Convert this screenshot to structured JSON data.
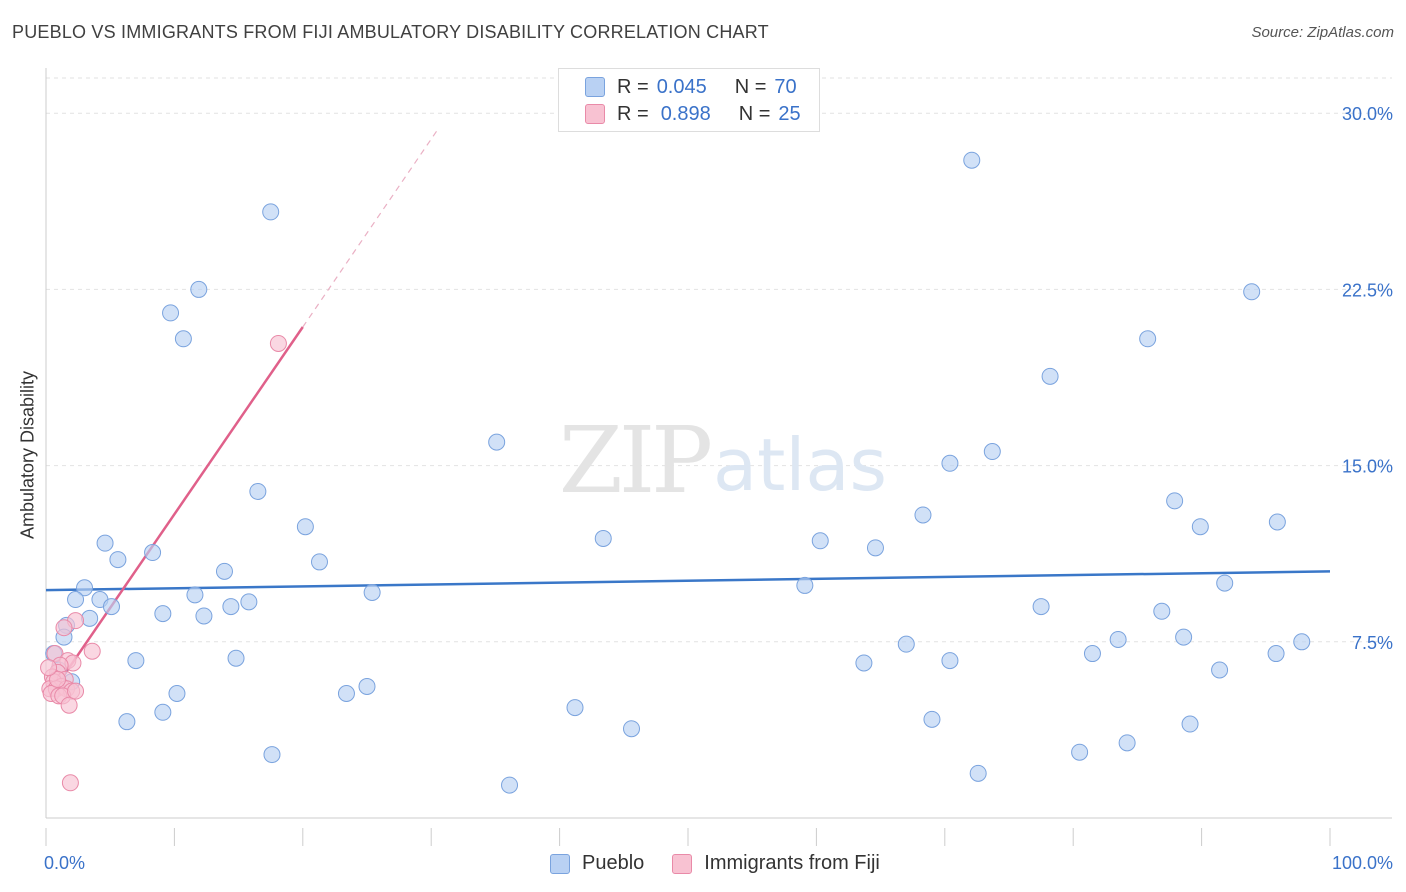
{
  "title": "PUEBLO VS IMMIGRANTS FROM FIJI AMBULATORY DISABILITY CORRELATION CHART",
  "source": "Source: ZipAtlas.com",
  "watermark": {
    "zip": "ZIP",
    "atlas": "atlas"
  },
  "legend": {
    "r_label": "R =",
    "n_label": "N =",
    "series": [
      {
        "r": "0.045",
        "n": "70"
      },
      {
        "r": "0.898",
        "n": "25"
      }
    ]
  },
  "bottom_legend": [
    "Pueblo",
    "Immigrants from Fiji"
  ],
  "colors": {
    "pueblo_fill": "#b9d1f3",
    "pueblo_stroke": "#7aa3de",
    "pueblo_line": "#3a77c8",
    "fiji_fill": "#f8c2d2",
    "fiji_stroke": "#e98aa8",
    "fiji_line": "#e0608a",
    "axis_label": "#3a72c9",
    "grid": "#e2e2e2"
  },
  "chart_data": {
    "type": "scatter",
    "title": "PUEBLO VS IMMIGRANTS FROM FIJI AMBULATORY DISABILITY CORRELATION CHART",
    "xlabel": "",
    "ylabel": "Ambulatory Disability",
    "xlim": [
      0,
      100
    ],
    "ylim": [
      0,
      31.5
    ],
    "x_tick_labels": [
      "0.0%",
      "100.0%"
    ],
    "y_ticks": [
      7.5,
      15.0,
      22.5,
      30.0
    ],
    "y_tick_labels": [
      "7.5%",
      "15.0%",
      "22.5%",
      "30.0%"
    ],
    "grid": true,
    "series": [
      {
        "name": "Pueblo",
        "r": 0.045,
        "n": 70,
        "trend": {
          "x": [
            0,
            100
          ],
          "y": [
            9.7,
            10.5
          ]
        },
        "points": [
          [
            17.5,
            25.8
          ],
          [
            11.9,
            22.5
          ],
          [
            9.7,
            21.5
          ],
          [
            10.7,
            20.4
          ],
          [
            16.5,
            13.9
          ],
          [
            20.2,
            12.4
          ],
          [
            21.3,
            10.9
          ],
          [
            4.6,
            11.7
          ],
          [
            5.6,
            11.0
          ],
          [
            8.3,
            11.3
          ],
          [
            13.9,
            10.5
          ],
          [
            3.0,
            9.8
          ],
          [
            2.3,
            9.3
          ],
          [
            4.2,
            9.3
          ],
          [
            5.1,
            9.0
          ],
          [
            11.6,
            9.5
          ],
          [
            15.8,
            9.2
          ],
          [
            14.4,
            9.0
          ],
          [
            25.4,
            9.6
          ],
          [
            9.1,
            8.7
          ],
          [
            12.3,
            8.6
          ],
          [
            3.4,
            8.5
          ],
          [
            1.6,
            8.2
          ],
          [
            1.4,
            7.7
          ],
          [
            0.6,
            7.0
          ],
          [
            7.0,
            6.7
          ],
          [
            14.8,
            6.8
          ],
          [
            25.0,
            5.6
          ],
          [
            23.4,
            5.3
          ],
          [
            10.2,
            5.3
          ],
          [
            9.1,
            4.5
          ],
          [
            6.3,
            4.1
          ],
          [
            17.6,
            2.7
          ],
          [
            35.1,
            16.0
          ],
          [
            43.4,
            11.9
          ],
          [
            41.2,
            4.7
          ],
          [
            36.1,
            1.4
          ],
          [
            45.6,
            3.8
          ],
          [
            72.1,
            28.0
          ],
          [
            93.9,
            22.4
          ],
          [
            85.8,
            20.4
          ],
          [
            78.2,
            18.8
          ],
          [
            73.7,
            15.6
          ],
          [
            70.4,
            15.1
          ],
          [
            68.3,
            12.9
          ],
          [
            60.3,
            11.8
          ],
          [
            64.6,
            11.5
          ],
          [
            59.1,
            9.9
          ],
          [
            87.9,
            13.5
          ],
          [
            89.9,
            12.4
          ],
          [
            95.9,
            12.6
          ],
          [
            91.8,
            10.0
          ],
          [
            86.9,
            8.8
          ],
          [
            77.5,
            9.0
          ],
          [
            83.5,
            7.6
          ],
          [
            81.5,
            7.0
          ],
          [
            88.6,
            7.7
          ],
          [
            91.4,
            6.3
          ],
          [
            95.8,
            7.0
          ],
          [
            97.8,
            7.5
          ],
          [
            67.0,
            7.4
          ],
          [
            63.7,
            6.6
          ],
          [
            70.4,
            6.7
          ],
          [
            69.0,
            4.2
          ],
          [
            89.1,
            4.0
          ],
          [
            84.2,
            3.2
          ],
          [
            80.5,
            2.8
          ],
          [
            72.6,
            1.9
          ],
          [
            1.0,
            6.3
          ],
          [
            2.0,
            5.8
          ]
        ]
      },
      {
        "name": "Immigrants from Fiji",
        "r": 0.898,
        "n": 25,
        "trend": {
          "x": [
            0.3,
            20.0
          ],
          "y": [
            5.2,
            20.9
          ]
        },
        "trend_dashed": {
          "x": [
            20.0,
            30.5
          ],
          "y": [
            20.9,
            29.3
          ]
        },
        "points": [
          [
            18.1,
            20.2
          ],
          [
            2.3,
            8.4
          ],
          [
            1.4,
            8.1
          ],
          [
            3.6,
            7.1
          ],
          [
            0.7,
            7.0
          ],
          [
            1.7,
            6.7
          ],
          [
            2.1,
            6.6
          ],
          [
            1.1,
            6.5
          ],
          [
            0.9,
            6.2
          ],
          [
            0.5,
            6.0
          ],
          [
            1.5,
            5.9
          ],
          [
            0.6,
            5.8
          ],
          [
            1.2,
            5.6
          ],
          [
            0.3,
            5.5
          ],
          [
            0.8,
            5.5
          ],
          [
            1.6,
            5.5
          ],
          [
            2.0,
            5.4
          ],
          [
            0.4,
            5.3
          ],
          [
            1.0,
            5.2
          ],
          [
            1.3,
            5.2
          ],
          [
            1.8,
            4.8
          ],
          [
            0.9,
            5.9
          ],
          [
            0.2,
            6.4
          ],
          [
            1.9,
            1.5
          ],
          [
            2.3,
            5.4
          ]
        ]
      }
    ]
  }
}
